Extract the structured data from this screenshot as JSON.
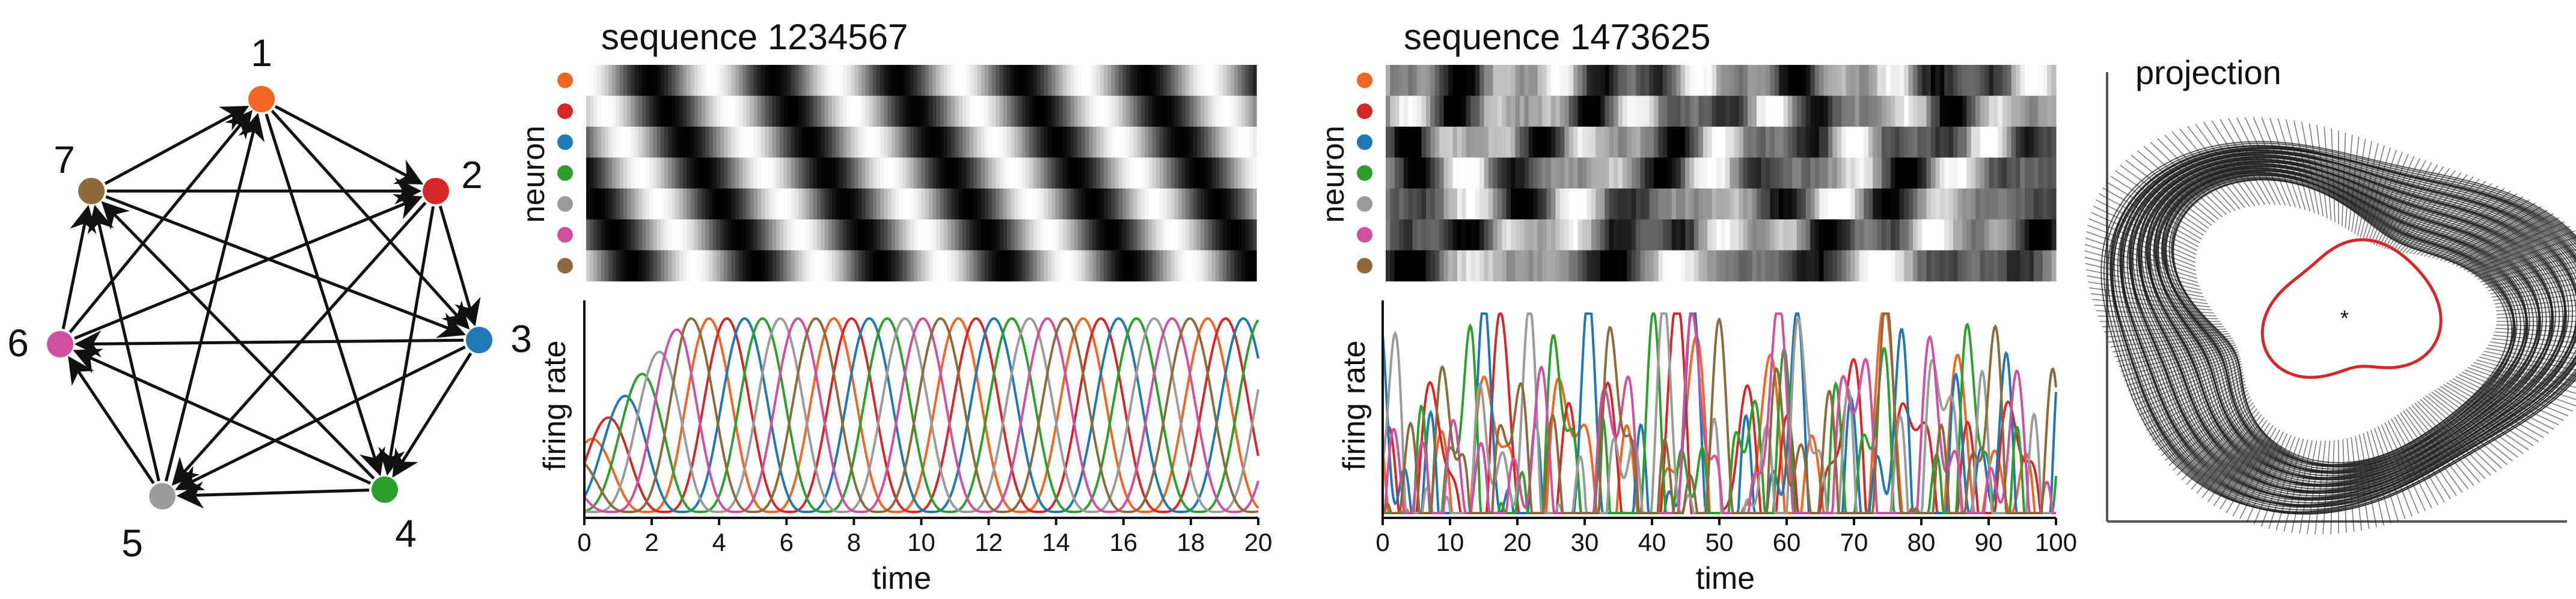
{
  "graph": {
    "nodes": [
      {
        "id": "1",
        "label": "1",
        "color": "#f26522"
      },
      {
        "id": "2",
        "label": "2",
        "color": "#d62728"
      },
      {
        "id": "3",
        "label": "3",
        "color": "#1f77b4"
      },
      {
        "id": "4",
        "label": "4",
        "color": "#2ca02c"
      },
      {
        "id": "5",
        "label": "5",
        "color": "#9b9b9b"
      },
      {
        "id": "6",
        "label": "6",
        "color": "#d14fa1"
      },
      {
        "id": "7",
        "label": "7",
        "color": "#8c6a3c"
      }
    ],
    "edges": [
      [
        "1",
        "2"
      ],
      [
        "2",
        "3"
      ],
      [
        "3",
        "4"
      ],
      [
        "4",
        "5"
      ],
      [
        "5",
        "6"
      ],
      [
        "6",
        "7"
      ],
      [
        "7",
        "1"
      ],
      [
        "1",
        "3"
      ],
      [
        "2",
        "4"
      ],
      [
        "3",
        "5"
      ],
      [
        "4",
        "6"
      ],
      [
        "5",
        "7"
      ],
      [
        "6",
        "1"
      ],
      [
        "7",
        "2"
      ],
      [
        "1",
        "4"
      ],
      [
        "2",
        "5"
      ],
      [
        "3",
        "6"
      ],
      [
        "4",
        "7"
      ],
      [
        "5",
        "1"
      ],
      [
        "6",
        "2"
      ],
      [
        "7",
        "3"
      ]
    ]
  },
  "neuron_colors": [
    "#f26522",
    "#d62728",
    "#1f77b4",
    "#2ca02c",
    "#9b9b9b",
    "#d14fa1",
    "#8c6a3c"
  ],
  "chart_data": [
    {
      "type": "heatmap",
      "title": "sequence 1234567",
      "ylabel": "neuron",
      "rows": 7,
      "period": 3.7,
      "xlim": [
        0,
        20
      ]
    },
    {
      "type": "line",
      "xlabel": "time",
      "ylabel": "firing rate",
      "xlim": [
        0,
        20
      ],
      "xticks": [
        "0",
        "2",
        "4",
        "6",
        "8",
        "10",
        "12",
        "14",
        "16",
        "18",
        "20"
      ],
      "series_colors": [
        "#f26522",
        "#d62728",
        "#1f77b4",
        "#2ca02c",
        "#9b9b9b",
        "#d14fa1",
        "#8c6a3c"
      ],
      "period": 3.7
    },
    {
      "type": "heatmap",
      "title": "sequence 1473625",
      "ylabel": "neuron",
      "rows": 7,
      "xlim": [
        0,
        100
      ]
    },
    {
      "type": "line",
      "xlabel": "time",
      "ylabel": "firing rate",
      "xlim": [
        0,
        100
      ],
      "xticks": [
        "0",
        "10",
        "20",
        "30",
        "40",
        "50",
        "60",
        "70",
        "80",
        "90",
        "100"
      ],
      "series_colors": [
        "#f26522",
        "#d62728",
        "#1f77b4",
        "#2ca02c",
        "#9b9b9b",
        "#d14fa1",
        "#8c6a3c"
      ]
    },
    {
      "type": "scatter",
      "title": "projection",
      "torus_color": "#222222",
      "curve_color": "#d62728"
    }
  ]
}
